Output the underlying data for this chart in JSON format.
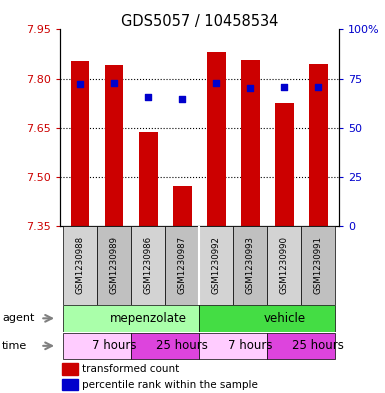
{
  "title": "GDS5057 / 10458534",
  "samples": [
    "GSM1230988",
    "GSM1230989",
    "GSM1230986",
    "GSM1230987",
    "GSM1230992",
    "GSM1230993",
    "GSM1230990",
    "GSM1230991"
  ],
  "bar_values": [
    7.855,
    7.843,
    7.638,
    7.472,
    7.882,
    7.858,
    7.726,
    7.845
  ],
  "bar_bottom": 7.35,
  "blue_values": [
    7.785,
    7.787,
    7.745,
    7.738,
    7.788,
    7.77,
    7.773,
    7.775
  ],
  "ylim_left": [
    7.35,
    7.95
  ],
  "ylim_right": [
    0,
    100
  ],
  "yticks_left": [
    7.35,
    7.5,
    7.65,
    7.8,
    7.95
  ],
  "yticks_right": [
    0,
    25,
    50,
    75,
    100
  ],
  "ytick_labels_right": [
    "0",
    "25",
    "50",
    "75",
    "100%"
  ],
  "bar_color": "#cc0000",
  "blue_color": "#0000cc",
  "agent_groups": [
    {
      "label": "mepenzolate",
      "start": 0,
      "end": 4,
      "color": "#aaffaa"
    },
    {
      "label": "vehicle",
      "start": 4,
      "end": 8,
      "color": "#44dd44"
    }
  ],
  "time_groups": [
    {
      "label": "7 hours",
      "start": 0,
      "end": 2,
      "color": "#ffccff"
    },
    {
      "label": "25 hours",
      "start": 2,
      "end": 4,
      "color": "#dd44dd"
    },
    {
      "label": "7 hours",
      "start": 4,
      "end": 6,
      "color": "#ffccff"
    },
    {
      "label": "25 hours",
      "start": 6,
      "end": 8,
      "color": "#dd44dd"
    }
  ],
  "legend_items": [
    {
      "color": "#cc0000",
      "label": "transformed count"
    },
    {
      "color": "#0000cc",
      "label": "percentile rank within the sample"
    }
  ],
  "bar_width": 0.55,
  "ylabel_left_color": "#cc0000",
  "ylabel_right_color": "#0000cc"
}
